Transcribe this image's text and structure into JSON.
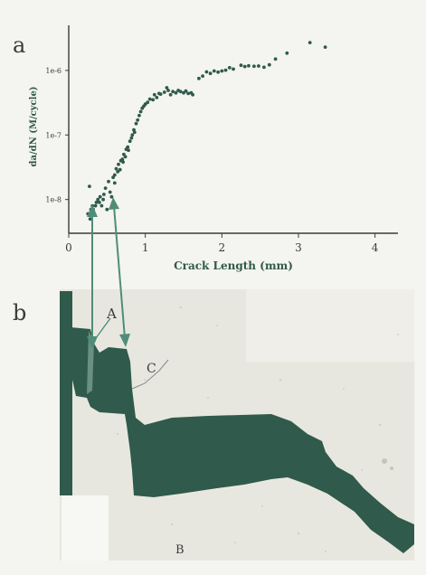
{
  "panels": {
    "a": "a",
    "b": "b"
  },
  "micrograph_labels": {
    "A": "A",
    "B": "B",
    "C": "C"
  },
  "colors": {
    "ink": "#2f5a4c",
    "paper": "#f4f4f0",
    "micrograph_bg": "#e6e5dd",
    "arrow": "#4f8d78"
  },
  "chart_data": {
    "type": "scatter",
    "title": "",
    "xlabel": "Crack Length (mm)",
    "ylabel": "da/dN (M/cycle)",
    "xlim": [
      0,
      4.3
    ],
    "ylim": [
      3e-09,
      5e-06
    ],
    "yscale": "log",
    "grid": false,
    "x_ticks": [
      0,
      1,
      2,
      3,
      4
    ],
    "x_tick_labels": [
      "0",
      "1",
      "2",
      "3",
      "4"
    ],
    "y_ticks": [
      1e-08,
      1e-07,
      1e-06
    ],
    "y_tick_labels": [
      "1e-8",
      "1e-7",
      "1e-6"
    ],
    "series": [
      {
        "x": [
          0.25,
          0.27,
          0.28,
          0.29,
          0.3,
          0.31,
          0.32,
          0.33,
          0.35,
          0.36,
          0.38,
          0.4,
          0.41,
          0.43,
          0.45,
          0.46,
          0.48,
          0.5,
          0.52,
          0.54,
          0.56,
          0.58,
          0.6,
          0.6,
          0.62,
          0.64,
          0.65,
          0.67,
          0.68,
          0.7,
          0.71,
          0.72,
          0.74,
          0.75,
          0.77,
          0.78,
          0.8,
          0.82,
          0.83,
          0.85,
          0.86,
          0.88,
          0.9,
          0.92,
          0.94,
          0.96,
          0.98,
          1.0,
          1.03,
          1.06,
          1.1,
          1.12,
          1.15,
          1.18,
          1.2,
          1.25,
          1.28,
          1.3,
          1.33,
          1.36,
          1.4,
          1.43,
          1.46,
          1.5,
          1.53,
          1.56,
          1.6,
          1.62,
          1.7,
          1.75,
          1.8,
          1.85,
          1.9,
          1.95,
          2.0,
          2.05,
          2.1,
          2.15,
          2.25,
          2.3,
          2.35,
          2.42,
          2.48,
          2.55,
          2.62,
          2.7,
          2.85,
          3.15,
          3.35
        ],
        "y": [
          6e-09,
          1.6e-08,
          5e-09,
          7e-09,
          6e-09,
          8e-09,
          7e-09,
          6e-09,
          8e-09,
          9e-09,
          1e-08,
          9e-09,
          1.1e-08,
          8e-09,
          1e-08,
          1.2e-08,
          1.5e-08,
          7e-09,
          1.9e-08,
          1.3e-08,
          1.1e-08,
          2.2e-08,
          2.4e-08,
          1.8e-08,
          3e-08,
          2.7e-08,
          3.5e-08,
          2.9e-08,
          4e-08,
          4.2e-08,
          3.8e-08,
          5e-08,
          4.6e-08,
          6e-08,
          6.5e-08,
          5.8e-08,
          8e-08,
          9e-08,
          1e-07,
          1.2e-07,
          1.1e-07,
          1.5e-07,
          1.7e-07,
          2e-07,
          2.3e-07,
          2.6e-07,
          2.8e-07,
          3e-07,
          3.2e-07,
          3.6e-07,
          3.5e-07,
          4.2e-07,
          3.8e-07,
          4.4e-07,
          4.3e-07,
          4.6e-07,
          5.4e-07,
          4.9e-07,
          4.2e-07,
          4.7e-07,
          4.5e-07,
          4.9e-07,
          4.7e-07,
          4.5e-07,
          4.8e-07,
          4.4e-07,
          4.5e-07,
          4.2e-07,
          7.5e-07,
          8.2e-07,
          9.5e-07,
          9e-07,
          9.8e-07,
          9.4e-07,
          9.8e-07,
          1.01e-06,
          1.1e-06,
          1.05e-06,
          1.2e-06,
          1.15e-06,
          1.18e-06,
          1.16e-06,
          1.17e-06,
          1.12e-06,
          1.22e-06,
          1.5e-06,
          1.85e-06,
          2.7e-06,
          2.3e-06
        ]
      }
    ]
  }
}
